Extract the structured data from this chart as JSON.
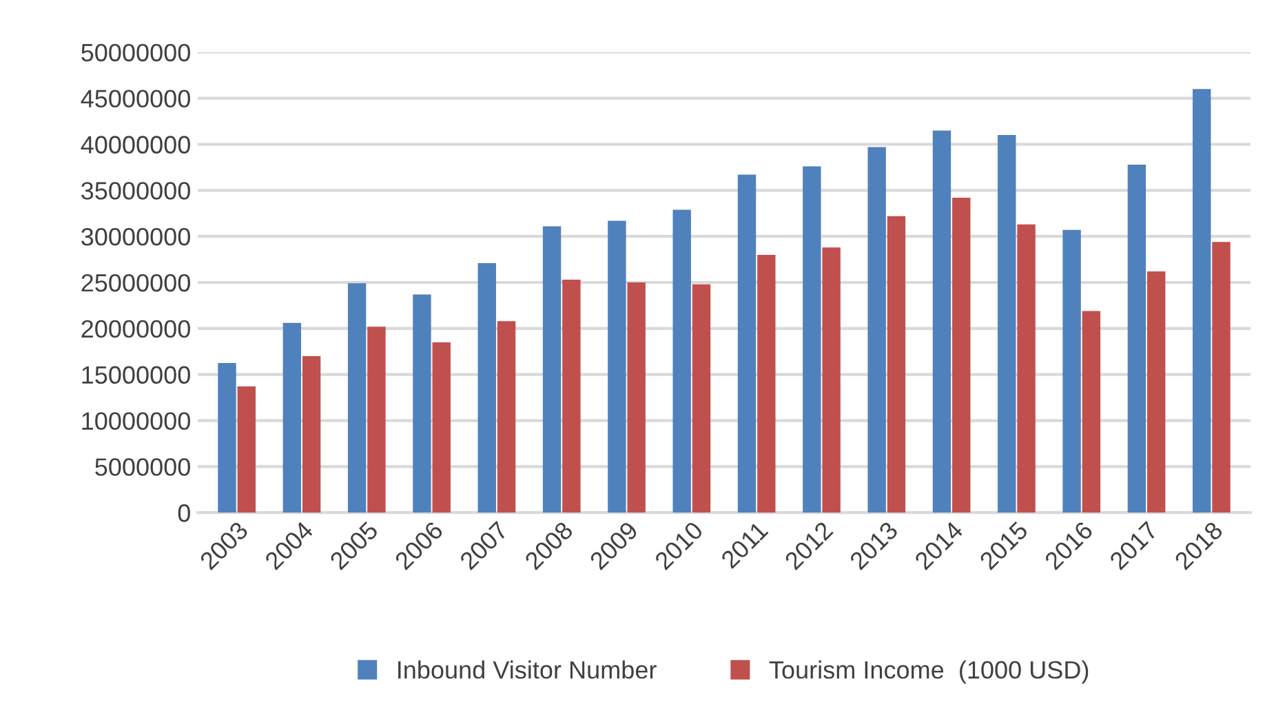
{
  "chart_data": {
    "type": "bar",
    "categories": [
      "2003",
      "2004",
      "2005",
      "2006",
      "2007",
      "2008",
      "2009",
      "2010",
      "2011",
      "2012",
      "2013",
      "2014",
      "2015",
      "2016",
      "2017",
      "2018"
    ],
    "series": [
      {
        "name": "Inbound Visitor Number",
        "color": "#4f81bd",
        "values": [
          16250000,
          20600000,
          24900000,
          23700000,
          27100000,
          31100000,
          31700000,
          32900000,
          36700000,
          37600000,
          39700000,
          41500000,
          41000000,
          30700000,
          37800000,
          46000000
        ]
      },
      {
        "name": "Tourism Income  (1000 USD)",
        "color": "#c0504d",
        "values": [
          13700000,
          17000000,
          20200000,
          18500000,
          20800000,
          25300000,
          25000000,
          24800000,
          28000000,
          28800000,
          32200000,
          34200000,
          31300000,
          21900000,
          26200000,
          29400000
        ]
      }
    ],
    "ylim": [
      0,
      50000000
    ],
    "yticks": [
      0,
      5000000,
      10000000,
      15000000,
      20000000,
      25000000,
      30000000,
      35000000,
      40000000,
      45000000,
      50000000
    ],
    "grid": "y",
    "legend": "bottom"
  }
}
